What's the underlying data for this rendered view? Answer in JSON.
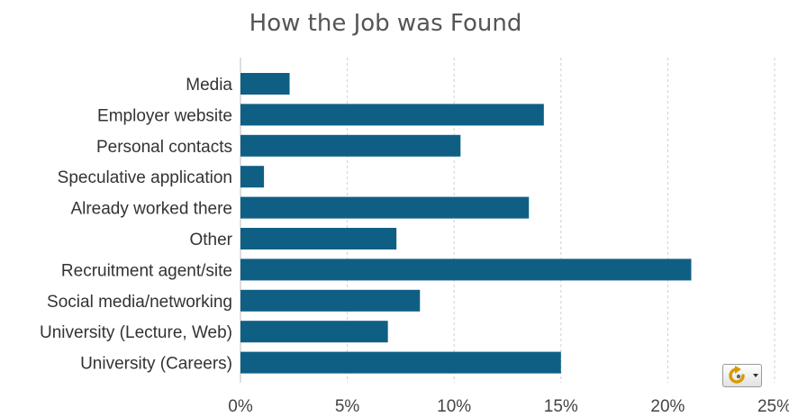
{
  "chart_data": {
    "type": "bar",
    "orientation": "horizontal",
    "title": "How the Job was Found",
    "categories": [
      "Media",
      "Employer website",
      "Personal contacts",
      "Speculative application",
      "Already worked there",
      "Other",
      "Recruitment agent/site",
      "Social media/networking",
      "University (Lecture, Web)",
      "University (Careers)"
    ],
    "values": [
      2.3,
      14.2,
      10.3,
      1.1,
      13.5,
      7.3,
      21.1,
      8.4,
      6.9,
      15.0
    ],
    "xlim": [
      0,
      25
    ],
    "xticks": [
      0,
      5,
      10,
      15,
      20,
      25
    ],
    "xtick_labels": [
      "0%",
      "5%",
      "10%",
      "15%",
      "20%",
      "25%"
    ],
    "grid": "vertical dashed",
    "bar_color": "#0f5f85"
  },
  "controls": {
    "refresh_icon": "refresh-icon"
  }
}
